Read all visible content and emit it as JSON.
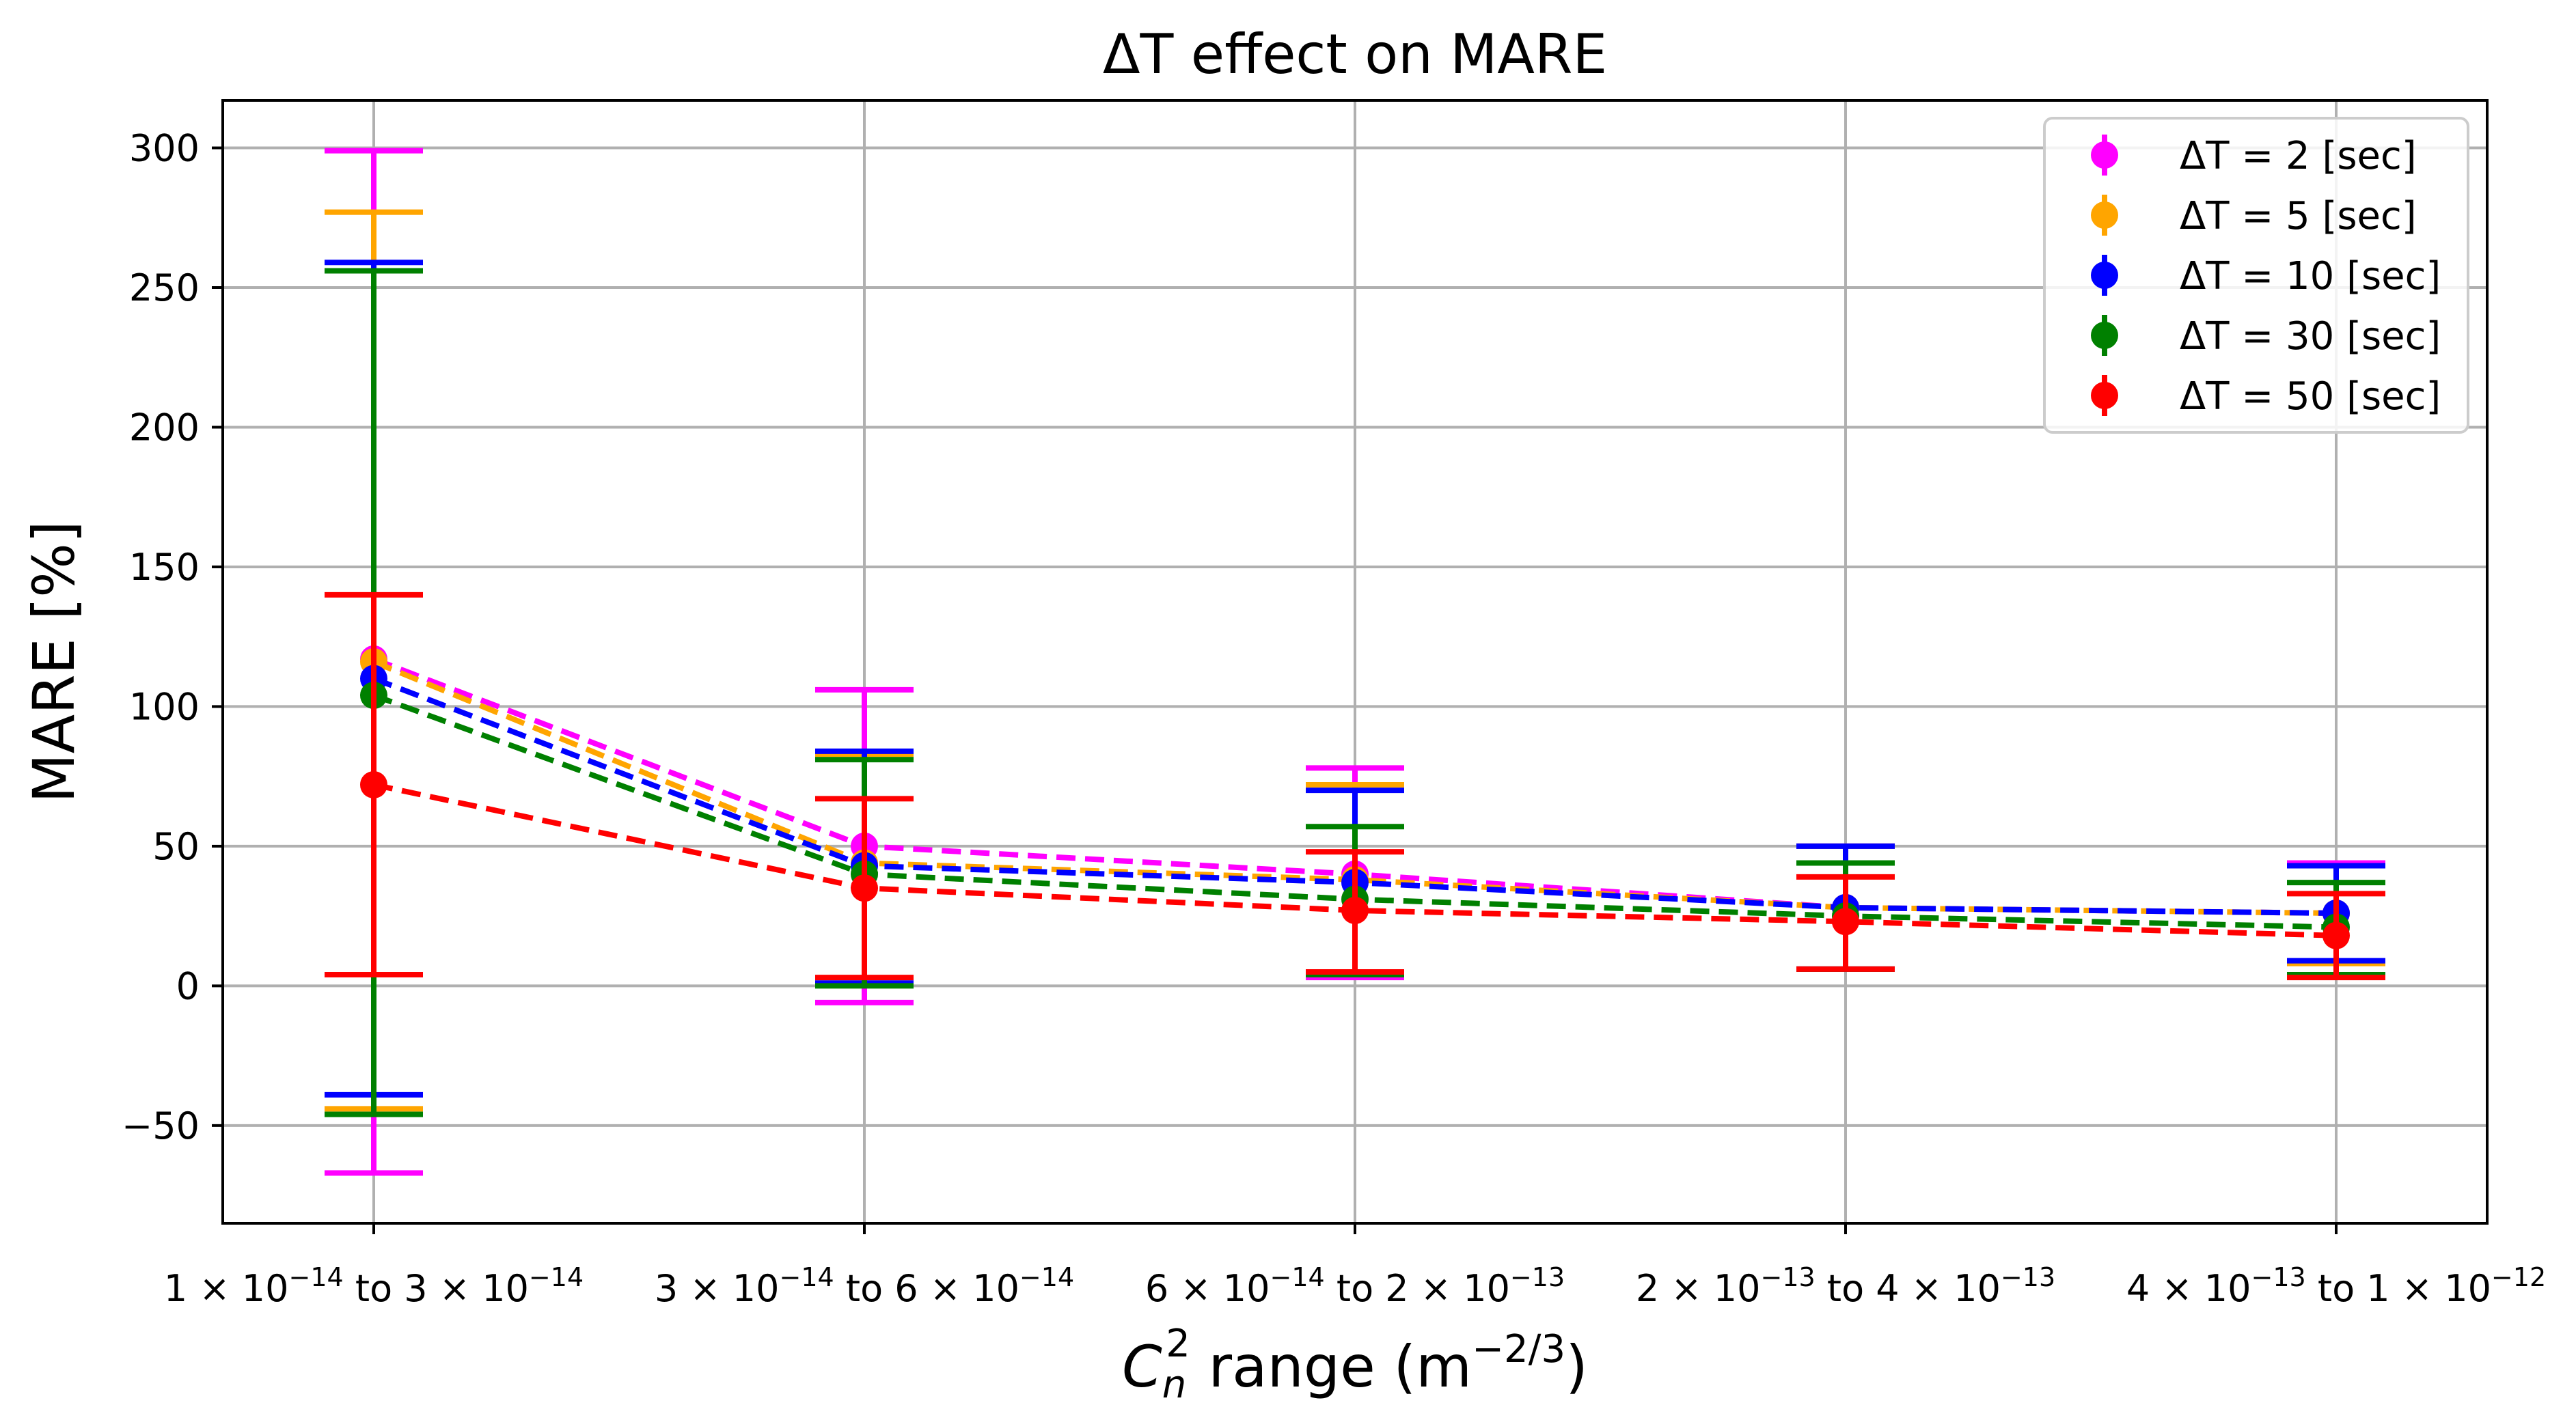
{
  "chart_data": {
    "type": "line",
    "title": "ΔT effect on MARE",
    "ylabel": "MARE [%]",
    "xlabel": {
      "main": "C",
      "sub": "n",
      "sup": "2",
      "rest": " range (m",
      "unit_sup": "−2/3",
      "close": ")"
    },
    "ylim": [
      -85,
      317
    ],
    "yticks": [
      300,
      250,
      200,
      150,
      100,
      50,
      0,
      -50
    ],
    "ytick_labels": [
      "300",
      "250",
      "200",
      "150",
      "100",
      "50",
      "0",
      "−50"
    ],
    "grid": true,
    "legend_position": "top-right",
    "categories": [
      {
        "a": "1",
        "ae": "−14",
        "b": "3",
        "be": "−14"
      },
      {
        "a": "3",
        "ae": "−14",
        "b": "6",
        "be": "−14"
      },
      {
        "a": "6",
        "ae": "−14",
        "b": "2",
        "be": "−13"
      },
      {
        "a": "2",
        "ae": "−13",
        "b": "4",
        "be": "−13"
      },
      {
        "a": "4",
        "ae": "−13",
        "b": "1",
        "be": "−12"
      }
    ],
    "tick_times": "×",
    "tick_base": "10",
    "tick_to": "to",
    "series": [
      {
        "name": "ΔT = 2 [sec]",
        "color": "#ff00ff",
        "values": [
          117,
          50,
          40,
          28,
          26
        ],
        "err_low": [
          -67,
          -6,
          3,
          6,
          4
        ],
        "err_high": [
          299,
          106,
          78,
          50,
          44
        ]
      },
      {
        "name": "ΔT = 5 [sec]",
        "color": "#ffa500",
        "values": [
          116,
          44,
          38,
          28,
          26
        ],
        "err_low": [
          -44,
          1,
          4,
          6,
          8
        ],
        "err_high": [
          277,
          83,
          72,
          50,
          43
        ]
      },
      {
        "name": "ΔT = 10 [sec]",
        "color": "#0000ff",
        "values": [
          110,
          43,
          37,
          28,
          26
        ],
        "err_low": [
          -39,
          1,
          4,
          6,
          9
        ],
        "err_high": [
          259,
          84,
          70,
          50,
          43
        ]
      },
      {
        "name": "ΔT = 30 [sec]",
        "color": "#008000",
        "values": [
          104,
          40,
          31,
          25,
          21
        ],
        "err_low": [
          -46,
          0,
          4,
          6,
          4
        ],
        "err_high": [
          256,
          81,
          57,
          44,
          37
        ]
      },
      {
        "name": "ΔT = 50 [sec]",
        "color": "#ff0000",
        "values": [
          72,
          35,
          27,
          23,
          18
        ],
        "err_low": [
          4,
          3,
          5,
          6,
          3
        ],
        "err_high": [
          140,
          67,
          48,
          39,
          33
        ]
      }
    ]
  }
}
